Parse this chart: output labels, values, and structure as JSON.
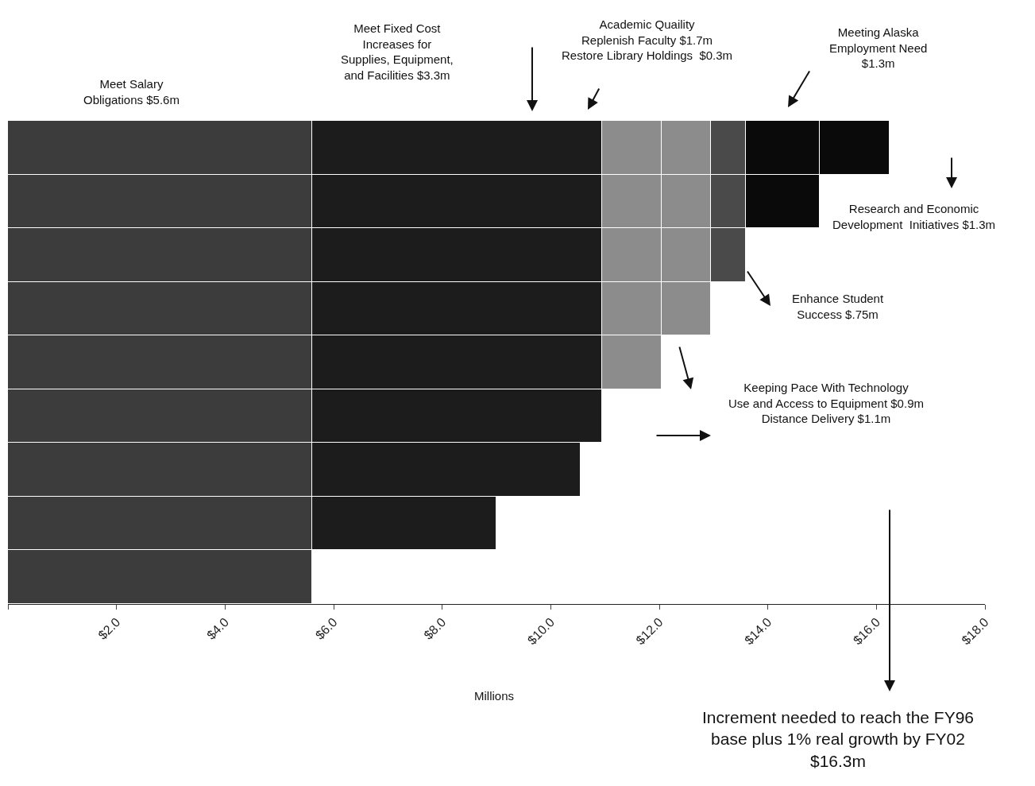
{
  "chart_data": {
    "type": "bar",
    "orientation": "horizontal",
    "stacked": true,
    "categories": [
      null,
      null,
      null,
      null,
      null,
      null,
      null,
      null,
      null
    ],
    "series": [
      {
        "color": "#3c3c3c",
        "values": [
          5.6,
          5.6,
          5.6,
          5.6,
          5.6,
          5.6,
          5.6,
          5.6,
          5.6
        ]
      },
      {
        "color": "#1c1c1c",
        "values": [
          5.35,
          5.35,
          5.35,
          5.35,
          5.35,
          5.35,
          4.95,
          3.4,
          null
        ]
      },
      {
        "color": "#8c8c8c",
        "values": [
          1.1,
          1.1,
          1.1,
          1.1,
          1.1,
          null,
          null,
          null,
          null
        ]
      },
      {
        "color": "#8c8c8c",
        "values": [
          0.9,
          0.9,
          0.9,
          0.9,
          null,
          null,
          null,
          null,
          null
        ]
      },
      {
        "color": "#4a4a4a",
        "values": [
          0.65,
          0.65,
          0.65,
          null,
          null,
          null,
          null,
          null,
          null
        ]
      },
      {
        "color": "#0a0a0a",
        "values": [
          1.35,
          1.35,
          null,
          null,
          null,
          null,
          null,
          null,
          null
        ]
      },
      {
        "color": "#0a0a0a",
        "values": [
          1.3,
          null,
          null,
          null,
          null,
          null,
          null,
          null,
          null
        ]
      }
    ],
    "xlim": [
      0,
      18
    ],
    "xticks": [
      {
        "value": 0,
        "label": null
      },
      {
        "value": 2,
        "label": "$2.0"
      },
      {
        "value": 4,
        "label": "$4.0"
      },
      {
        "value": 6,
        "label": "$6.0"
      },
      {
        "value": 8,
        "label": "$8.0"
      },
      {
        "value": 10,
        "label": "$10.0"
      },
      {
        "value": 12,
        "label": "$12.0"
      },
      {
        "value": 14,
        "label": "$14.0"
      },
      {
        "value": 16,
        "label": "$16.0"
      },
      {
        "value": 18,
        "label": "$18.0"
      }
    ],
    "xlabel": "Millions",
    "tick_labels": "x",
    "grid": false,
    "annotations": [
      "Meet Salary\nObligations $5.6m",
      "Meet Fixed Cost\nIncreases for\nSupplies, Equipment,\nand Facilities $3.3m",
      "Academic Quaility\nReplenish Faculty $1.7m\nRestore Library Holdings  $0.3m",
      "Meeting Alaska\nEmployment Need\n$1.3m",
      "Research and Economic\nDevelopment  Initiatives $1.3m",
      "Enhance Student\nSuccess $.75m",
      "Keeping Pace With Technology\nUse and Access to Equipment $0.9m\nDistance Delivery $1.1m",
      "Increment needed to reach the FY96\nbase plus 1% real growth by FY02\n$16.3m"
    ]
  }
}
